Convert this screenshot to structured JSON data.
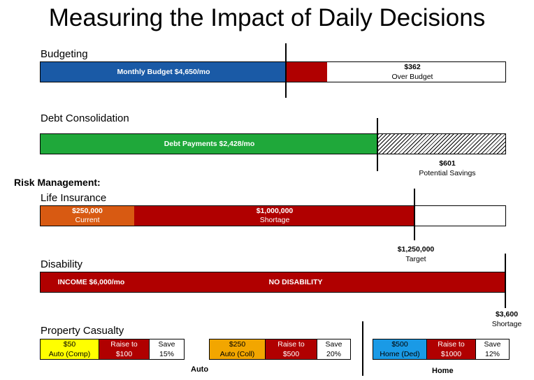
{
  "title": "Measuring the Impact of Daily Decisions",
  "colors": {
    "blue": "#1a5aa6",
    "red": "#b00000",
    "green": "#1fa83a",
    "orange": "#d85a12",
    "yellow": "#ffff00",
    "amber": "#f2a600",
    "lightblue": "#1a9ae6"
  },
  "chart_data": {
    "type": "bar",
    "orientation": "horizontal",
    "title": "Measuring the Impact of Daily Decisions",
    "sections": {
      "budgeting": {
        "label": "Budgeting",
        "segments": [
          {
            "label": "Monthly Budget $4,650/mo",
            "value": 4650,
            "color": "#1a5aa6"
          },
          {
            "label": "",
            "value": 362,
            "color": "#b00000"
          }
        ],
        "note_value": "$362",
        "note_text": "Over Budget"
      },
      "debt": {
        "label": "Debt Consolidation",
        "segments": [
          {
            "label": "Debt Payments $2,428/mo",
            "value": 2428,
            "color": "#1fa83a"
          },
          {
            "label": "",
            "value": 601,
            "pattern": "hatched"
          }
        ],
        "note_value": "$601",
        "note_text": "Potential Savings"
      },
      "risk_management_label": "Risk Management:",
      "life": {
        "label": "Life Insurance",
        "segments": [
          {
            "label_value": "$250,000",
            "label_text": "Current",
            "value": 250000,
            "color": "#d85a12"
          },
          {
            "label_value": "$1,000,000",
            "label_text": "Shortage",
            "value": 1000000,
            "color": "#b00000"
          }
        ],
        "target_value": "$1,250,000",
        "target_text": "Target"
      },
      "disability": {
        "label": "Disability",
        "segments": [
          {
            "label": "INCOME $6,000/mo",
            "color": "#b00000"
          },
          {
            "label": "NO DISABILITY",
            "color": "#b00000"
          }
        ],
        "note_value": "$3,600",
        "note_text": "Shortage"
      },
      "property": {
        "label": "Property Casualty",
        "auto_label": "Auto",
        "home_label": "Home",
        "groups": [
          {
            "top": "$50",
            "bottom": "Auto (Comp)",
            "raise_top": "Raise to",
            "raise_bottom": "$100",
            "save_top": "Save",
            "save_bottom": "15%",
            "color": "#ffff00"
          },
          {
            "top": "$250",
            "bottom": "Auto (Coll)",
            "raise_top": "Raise to",
            "raise_bottom": "$500",
            "save_top": "Save",
            "save_bottom": "20%",
            "color": "#f2a600"
          },
          {
            "top": "$500",
            "bottom": "Home (Ded)",
            "raise_top": "Raise to",
            "raise_bottom": "$1000",
            "save_top": "Save",
            "save_bottom": "12%",
            "color": "#1a9ae6"
          }
        ]
      }
    }
  }
}
